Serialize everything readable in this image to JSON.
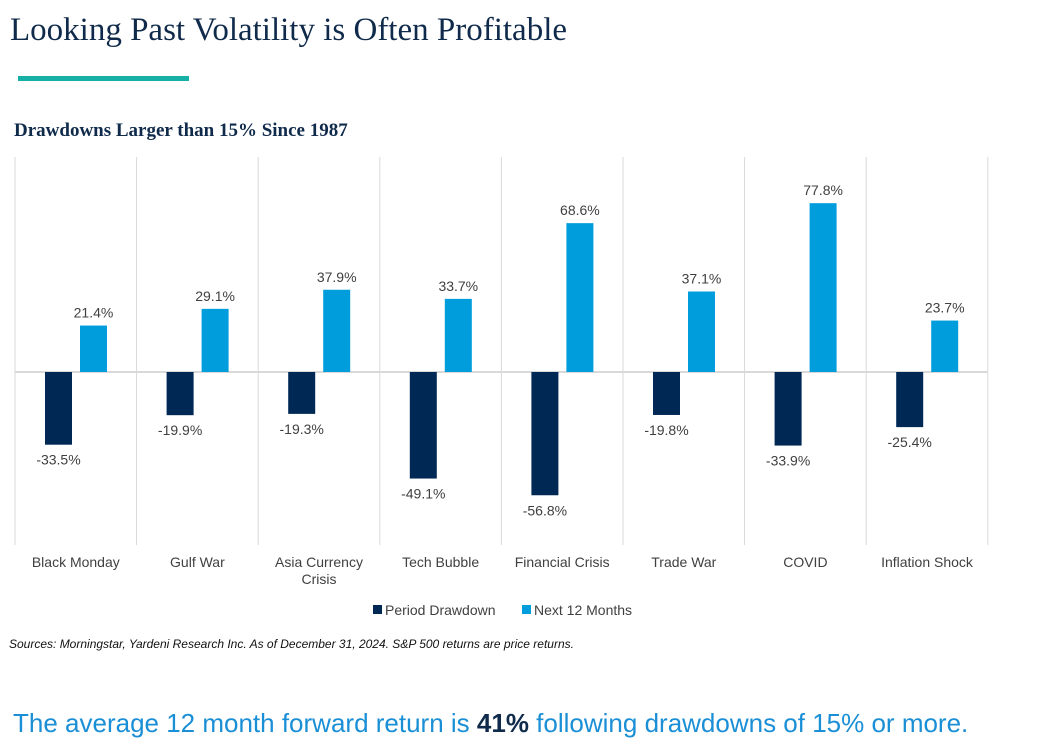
{
  "title": "Looking Past Volatility is Often Profitable",
  "colors": {
    "accent_rule": "#16b0a6",
    "drawdown": "#002855",
    "next12": "#009ddc"
  },
  "chart_data": {
    "type": "bar",
    "title": "Drawdowns Larger than 15% Since 1987",
    "categories": [
      "Black Monday",
      "Gulf War",
      "Asia Currency Crisis",
      "Tech Bubble",
      "Financial Crisis",
      "Trade War",
      "COVID",
      "Inflation Shock"
    ],
    "series": [
      {
        "name": "Period Drawdown",
        "values": [
          -33.5,
          -19.9,
          -19.3,
          -49.1,
          -56.8,
          -19.8,
          -33.9,
          -25.4
        ],
        "labels": [
          "-33.5%",
          "-19.9%",
          "-19.3%",
          "-49.1%",
          "-56.8%",
          "-19.8%",
          "-33.9%",
          "-25.4%"
        ]
      },
      {
        "name": "Next 12 Months",
        "values": [
          21.4,
          29.1,
          37.9,
          33.7,
          68.6,
          37.1,
          77.8,
          23.7
        ],
        "labels": [
          "21.4%",
          "29.1%",
          "37.9%",
          "33.7%",
          "68.6%",
          "37.1%",
          "77.8%",
          "23.7%"
        ]
      }
    ],
    "ylim": [
      -80,
      100
    ],
    "legend": "bottom",
    "grid": "vertical category separators"
  },
  "sources": "Sources: Morningstar, Yardeni Research Inc. As of December 31, 2024. S&P 500 returns are price returns.",
  "footer": {
    "pre": "The average 12 month forward return is ",
    "highlight": "41%",
    "post": " following drawdowns of 15% or more."
  }
}
